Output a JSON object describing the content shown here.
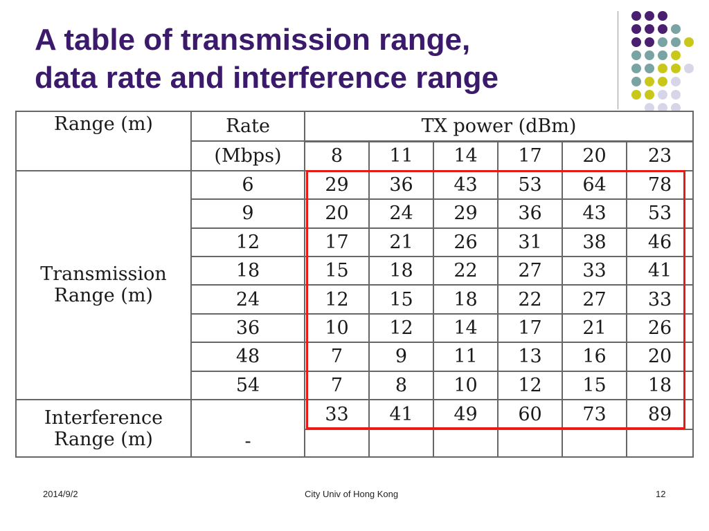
{
  "title": {
    "line1": "A table of transmission range,",
    "line2": "data rate and interference range"
  },
  "colors": {
    "title": "#3b1a6b",
    "highlight_box": "#e41b17",
    "dot_purple": "#4b1f6f",
    "dot_teal": "#7aa3a3",
    "dot_yellow": "#c9c81a",
    "dot_lavender": "#d6d6e8"
  },
  "table": {
    "header_range": "Range (m)",
    "header_rate_line1": "Rate",
    "header_rate_line2": "(Mbps)",
    "header_tx_power": "TX power (dBm)",
    "tx_powers": [
      "8",
      "11",
      "14",
      "17",
      "20",
      "23"
    ],
    "transmission_label_line1": "Transmission",
    "transmission_label_line2": "Range (m)",
    "rows": [
      {
        "rate": "6",
        "values": [
          "29",
          "36",
          "43",
          "53",
          "64",
          "78"
        ]
      },
      {
        "rate": "9",
        "values": [
          "20",
          "24",
          "29",
          "36",
          "43",
          "53"
        ]
      },
      {
        "rate": "12",
        "values": [
          "17",
          "21",
          "26",
          "31",
          "38",
          "46"
        ]
      },
      {
        "rate": "18",
        "values": [
          "15",
          "18",
          "22",
          "27",
          "33",
          "41"
        ]
      },
      {
        "rate": "24",
        "values": [
          "12",
          "15",
          "18",
          "22",
          "27",
          "33"
        ]
      },
      {
        "rate": "36",
        "values": [
          "10",
          "12",
          "14",
          "17",
          "21",
          "26"
        ]
      },
      {
        "rate": "48",
        "values": [
          "7",
          "9",
          "11",
          "13",
          "16",
          "20"
        ]
      },
      {
        "rate": "54",
        "values": [
          "7",
          "8",
          "10",
          "12",
          "15",
          "18"
        ]
      }
    ],
    "interference_label_line1": "Interference",
    "interference_label_line2": "Range (m)",
    "interference_rate": "-",
    "interference_values": [
      "33",
      "41",
      "49",
      "60",
      "73",
      "89"
    ]
  },
  "footer": {
    "date": "2014/9/2",
    "center": "City Univ of Hong Kong",
    "page": "12"
  }
}
